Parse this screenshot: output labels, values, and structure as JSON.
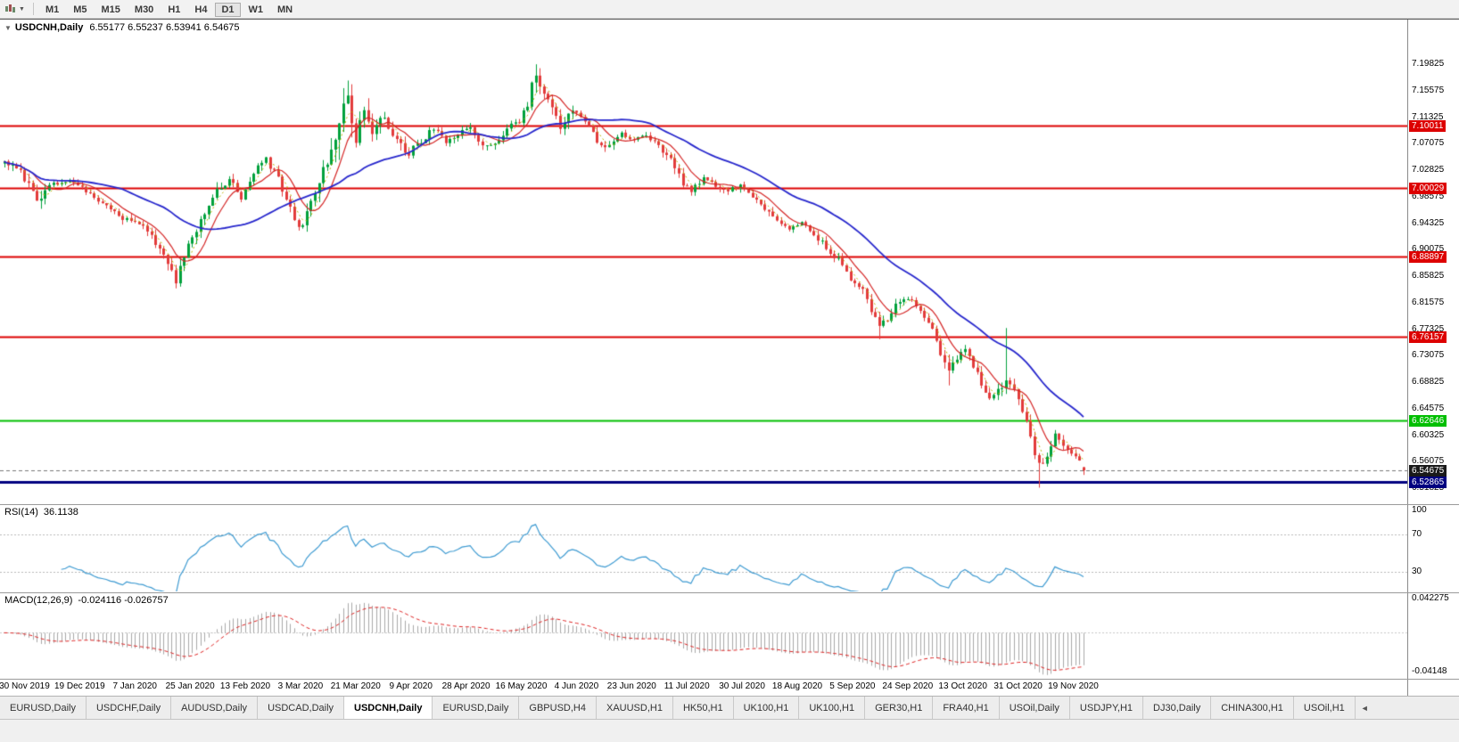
{
  "toolbar": {
    "timeframes": [
      "M1",
      "M5",
      "M15",
      "M30",
      "H1",
      "H4",
      "D1",
      "W1",
      "MN"
    ],
    "active_timeframe": "D1"
  },
  "chart": {
    "title": "USDCNH,Daily",
    "ohlc": "6.55177 6.55237 6.53941 6.54675"
  },
  "rsi_panel": {
    "label": "RSI(14)",
    "value": "36.1138"
  },
  "macd_panel": {
    "label": "MACD(12,26,9)",
    "values": "-0.024116 -0.026757"
  },
  "tabs": {
    "items": [
      "EURUSD,Daily",
      "USDCHF,Daily",
      "AUDUSD,Daily",
      "USDCAD,Daily",
      "USDCNH,Daily",
      "EURUSD,Daily",
      "GBPUSD,H4",
      "XAUUSD,H1",
      "HK50,H1",
      "UK100,H1",
      "UK100,H1",
      "GER30,H1",
      "FRA40,H1",
      "USOil,Daily",
      "USDJPY,H1",
      "DJ30,Daily",
      "CHINA300,H1",
      "USOil,H1"
    ],
    "active_index": 4,
    "scroll_icon": "◄"
  },
  "chart_data": {
    "type": "candlestick",
    "symbol": "USDCNH",
    "timeframe": "Daily",
    "ohlc_current": {
      "open": 6.55177,
      "high": 6.55237,
      "low": 6.53941,
      "close": 6.54675
    },
    "candle_count": 265,
    "up_color": "#00a13c",
    "down_color": "#e23b3b",
    "price_anchors": [
      [
        0,
        7.04,
        0.018
      ],
      [
        4,
        7.025,
        0.02
      ],
      [
        8,
        6.985,
        0.032
      ],
      [
        12,
        7.005,
        0.018
      ],
      [
        16,
        7.015,
        0.014
      ],
      [
        20,
        6.995,
        0.014
      ],
      [
        24,
        6.975,
        0.014
      ],
      [
        28,
        6.955,
        0.016
      ],
      [
        32,
        6.945,
        0.014
      ],
      [
        36,
        6.925,
        0.018
      ],
      [
        40,
        6.878,
        0.024
      ],
      [
        42,
        6.85,
        0.028
      ],
      [
        45,
        6.905,
        0.028
      ],
      [
        48,
        6.945,
        0.022
      ],
      [
        52,
        6.995,
        0.024
      ],
      [
        55,
        7.015,
        0.018
      ],
      [
        58,
        6.985,
        0.016
      ],
      [
        61,
        7.025,
        0.018
      ],
      [
        64,
        7.045,
        0.02
      ],
      [
        67,
        7.015,
        0.018
      ],
      [
        70,
        6.965,
        0.022
      ],
      [
        72,
        6.932,
        0.024
      ],
      [
        74,
        6.955,
        0.03
      ],
      [
        77,
        7.01,
        0.034
      ],
      [
        80,
        7.055,
        0.048
      ],
      [
        82,
        7.115,
        0.065
      ],
      [
        84,
        7.145,
        0.052
      ],
      [
        86,
        7.085,
        0.048
      ],
      [
        88,
        7.115,
        0.042
      ],
      [
        90,
        7.095,
        0.036
      ],
      [
        93,
        7.115,
        0.028
      ],
      [
        96,
        7.075,
        0.028
      ],
      [
        99,
        7.055,
        0.022
      ],
      [
        102,
        7.075,
        0.018
      ],
      [
        105,
        7.095,
        0.018
      ],
      [
        108,
        7.075,
        0.016
      ],
      [
        111,
        7.085,
        0.016
      ],
      [
        114,
        7.095,
        0.018
      ],
      [
        117,
        7.065,
        0.018
      ],
      [
        120,
        7.07,
        0.016
      ],
      [
        123,
        7.095,
        0.016
      ],
      [
        126,
        7.105,
        0.018
      ],
      [
        128,
        7.135,
        0.026
      ],
      [
        130,
        7.185,
        0.04
      ],
      [
        132,
        7.155,
        0.032
      ],
      [
        134,
        7.125,
        0.026
      ],
      [
        136,
        7.095,
        0.022
      ],
      [
        139,
        7.125,
        0.02
      ],
      [
        142,
        7.105,
        0.018
      ],
      [
        145,
        7.075,
        0.018
      ],
      [
        148,
        7.065,
        0.016
      ],
      [
        151,
        7.085,
        0.016
      ],
      [
        154,
        7.075,
        0.014
      ],
      [
        157,
        7.085,
        0.014
      ],
      [
        160,
        7.065,
        0.016
      ],
      [
        163,
        7.045,
        0.018
      ],
      [
        166,
        7.005,
        0.022
      ],
      [
        168,
        6.995,
        0.018
      ],
      [
        171,
        7.015,
        0.016
      ],
      [
        174,
        7.005,
        0.013
      ],
      [
        177,
        6.995,
        0.013
      ],
      [
        180,
        7.005,
        0.015
      ],
      [
        183,
        6.985,
        0.015
      ],
      [
        186,
        6.965,
        0.017
      ],
      [
        189,
        6.945,
        0.015
      ],
      [
        192,
        6.935,
        0.013
      ],
      [
        195,
        6.945,
        0.013
      ],
      [
        198,
        6.925,
        0.015
      ],
      [
        201,
        6.905,
        0.017
      ],
      [
        204,
        6.885,
        0.017
      ],
      [
        207,
        6.855,
        0.019
      ],
      [
        210,
        6.835,
        0.017
      ],
      [
        212,
        6.805,
        0.018
      ],
      [
        214,
        6.775,
        0.02
      ],
      [
        216,
        6.79,
        0.017
      ],
      [
        218,
        6.81,
        0.017
      ],
      [
        221,
        6.825,
        0.017
      ],
      [
        224,
        6.805,
        0.015
      ],
      [
        227,
        6.775,
        0.017
      ],
      [
        229,
        6.735,
        0.021
      ],
      [
        231,
        6.705,
        0.026
      ],
      [
        233,
        6.725,
        0.019
      ],
      [
        235,
        6.745,
        0.017
      ],
      [
        237,
        6.715,
        0.017
      ],
      [
        239,
        6.685,
        0.019
      ],
      [
        241,
        6.665,
        0.017
      ],
      [
        243,
        6.675,
        0.021
      ],
      [
        245,
        6.695,
        0.03
      ],
      [
        247,
        6.675,
        0.019
      ],
      [
        249,
        6.645,
        0.021
      ],
      [
        251,
        6.595,
        0.026
      ],
      [
        253,
        6.555,
        0.026
      ],
      [
        255,
        6.565,
        0.019
      ],
      [
        257,
        6.605,
        0.017
      ],
      [
        259,
        6.585,
        0.017
      ],
      [
        261,
        6.575,
        0.015
      ],
      [
        263,
        6.56,
        0.013
      ],
      [
        264,
        6.547,
        0.012
      ]
    ],
    "spikes": [
      {
        "i": 42,
        "low": 6.842
      },
      {
        "i": 84,
        "high": 7.165
      },
      {
        "i": 130,
        "high": 7.198
      },
      {
        "i": 214,
        "low": 6.757
      },
      {
        "i": 231,
        "low": 6.683
      },
      {
        "i": 245,
        "high": 6.775
      },
      {
        "i": 253,
        "low": 6.519
      }
    ],
    "moving_averages": [
      {
        "name": "ma-fastest",
        "period": 4,
        "color": "#b9b400",
        "width": 1,
        "style": "dotted"
      },
      {
        "name": "ma-fast",
        "period": 8,
        "color": "#d42525",
        "width": 1.2,
        "style": "solid"
      },
      {
        "name": "ma-slow",
        "period": 30,
        "color": "#2727cc",
        "width": 1.8,
        "style": "solid"
      }
    ],
    "hlines": [
      {
        "price": 7.10011,
        "color": "#dd0000",
        "width": 2
      },
      {
        "price": 7.00029,
        "color": "#dd0000",
        "width": 2
      },
      {
        "price": 6.88897,
        "color": "#dd0000",
        "width": 2
      },
      {
        "price": 6.76157,
        "color": "#dd0000",
        "width": 2
      },
      {
        "price": 6.62646,
        "color": "#00bf00",
        "width": 2
      },
      {
        "price": 6.52865,
        "color": "#000080",
        "width": 3
      }
    ],
    "bid_line": {
      "price": 6.54675,
      "color": "#777777",
      "style": "dash"
    },
    "y_axis": {
      "ticks": [
        "7.19825",
        "7.15575",
        "7.11325",
        "7.07075",
        "7.02825",
        "6.98575",
        "6.94325",
        "6.90075",
        "6.85825",
        "6.81575",
        "6.77325",
        "6.73075",
        "6.68825",
        "6.64575",
        "6.60325",
        "6.56075",
        "6.51825"
      ],
      "marks": [
        {
          "text": "7.10011",
          "price": 7.10011,
          "bg": "#dd0000",
          "fg": "#ffffff"
        },
        {
          "text": "7.00029",
          "price": 7.00029,
          "bg": "#dd0000",
          "fg": "#ffffff"
        },
        {
          "text": "6.88897",
          "price": 6.88897,
          "bg": "#dd0000",
          "fg": "#ffffff"
        },
        {
          "text": "6.76157",
          "price": 6.76157,
          "bg": "#dd0000",
          "fg": "#ffffff"
        },
        {
          "text": "6.62646",
          "price": 6.62646,
          "bg": "#00bf00",
          "fg": "#ffffff"
        },
        {
          "text": "6.54675",
          "price": 6.54675,
          "bg": "#1a1a1a",
          "fg": "#ffffff"
        },
        {
          "text": "6.52865",
          "price": 6.52865,
          "bg": "#000080",
          "fg": "#ffffff"
        }
      ]
    },
    "x_ticks": [
      "30 Nov 2019",
      "19 Dec 2019",
      "7 Jan 2020",
      "25 Jan 2020",
      "13 Feb 2020",
      "3 Mar 2020",
      "21 Mar 2020",
      "9 Apr 2020",
      "28 Apr 2020",
      "16 May 2020",
      "4 Jun 2020",
      "23 Jun 2020",
      "11 Jul 2020",
      "30 Jul 2020",
      "18 Aug 2020",
      "5 Sep 2020",
      "24 Sep 2020",
      "13 Oct 2020",
      "31 Oct 2020",
      "19 Nov 2020"
    ],
    "rsi": {
      "period": 14,
      "current": 36.1138,
      "levels": [
        70,
        30
      ],
      "axis_labels": [
        "100",
        "70",
        "30"
      ],
      "color": "#3d9ad1"
    },
    "macd": {
      "fast": 12,
      "slow": 26,
      "signal": 9,
      "values": [
        -0.024116,
        -0.026757
      ],
      "axis_max": 0.042275,
      "axis_min": -0.04148,
      "axis_labels": {
        "top": "0.042275",
        "bottom": "-0.04148"
      },
      "hist_color": "#a8a8a8",
      "signal_color": "#dd2222"
    }
  }
}
